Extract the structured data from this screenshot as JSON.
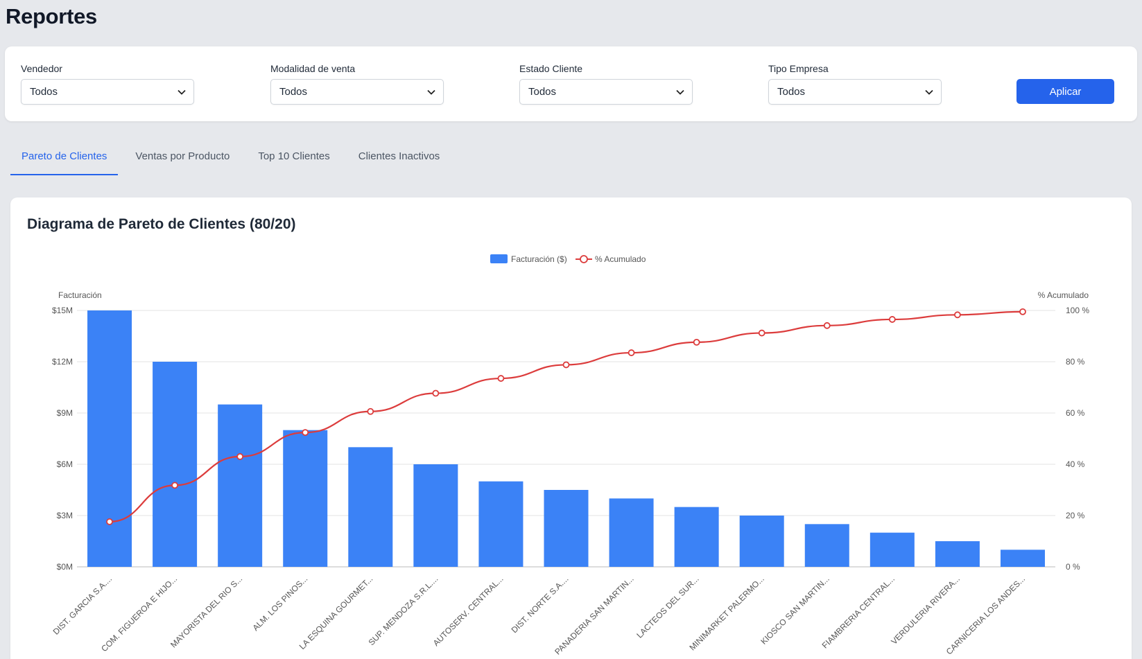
{
  "page": {
    "title": "Reportes"
  },
  "filters": [
    {
      "label": "Vendedor",
      "value": "Todos"
    },
    {
      "label": "Modalidad de venta",
      "value": "Todos"
    },
    {
      "label": "Estado Cliente",
      "value": "Todos"
    },
    {
      "label": "Tipo Empresa",
      "value": "Todos"
    }
  ],
  "apply_label": "Aplicar",
  "tabs": [
    {
      "label": "Pareto de Clientes",
      "active": true
    },
    {
      "label": "Ventas por Producto",
      "active": false
    },
    {
      "label": "Top 10 Clientes",
      "active": false
    },
    {
      "label": "Clientes Inactivos",
      "active": false
    }
  ],
  "colors": {
    "accent": "#2563eb",
    "bar": "#3b82f6",
    "line": "#dc3c3c"
  },
  "chart_data": {
    "type": "bar",
    "title": "Diagrama de Pareto de Clientes (80/20)",
    "categories": [
      "DIST. GARCIA S.A....",
      "COM. FIGUEROA E HIJO...",
      "MAYORISTA DEL RIO S...",
      "ALM. LOS PINOS...",
      "LA ESQUINA GOURMET...",
      "SUP. MENDOZA S.R.L....",
      "AUTOSERV. CENTRAL...",
      "DIST. NORTE S.A....",
      "PANADERIA SAN MARTIN...",
      "LACTEOS DEL SUR...",
      "MINIMARKET PALERMO...",
      "KIOSCO SAN MARTIN...",
      "FIAMBRERIA CENTRAL...",
      "VERDULERIA RIVERA...",
      "CARNICERIA LOS ANDES..."
    ],
    "series": [
      {
        "name": "Facturación ($)",
        "type": "bar",
        "axis": "left",
        "values": [
          15000000,
          12000000,
          9500000,
          8000000,
          7000000,
          6000000,
          5000000,
          4500000,
          4000000,
          3500000,
          3000000,
          2500000,
          2000000,
          1500000,
          1000000
        ]
      },
      {
        "name": "% Acumulado",
        "type": "line",
        "axis": "right",
        "values": [
          17.6,
          31.8,
          43.0,
          52.4,
          60.6,
          67.7,
          73.5,
          78.8,
          83.5,
          87.6,
          91.2,
          94.1,
          96.5,
          98.3,
          99.5
        ]
      }
    ],
    "ylabel": "Facturación",
    "y2label": "% Acumulado",
    "ylim": [
      0,
      15000000
    ],
    "y2lim": [
      0,
      100
    ],
    "yticks": [
      "$0M",
      "$3M",
      "$6M",
      "$9M",
      "$12M",
      "$15M"
    ],
    "y2ticks": [
      "0 %",
      "20 %",
      "40 %",
      "60 %",
      "80 %",
      "100 %"
    ],
    "legend": "top-center",
    "grid": true
  }
}
